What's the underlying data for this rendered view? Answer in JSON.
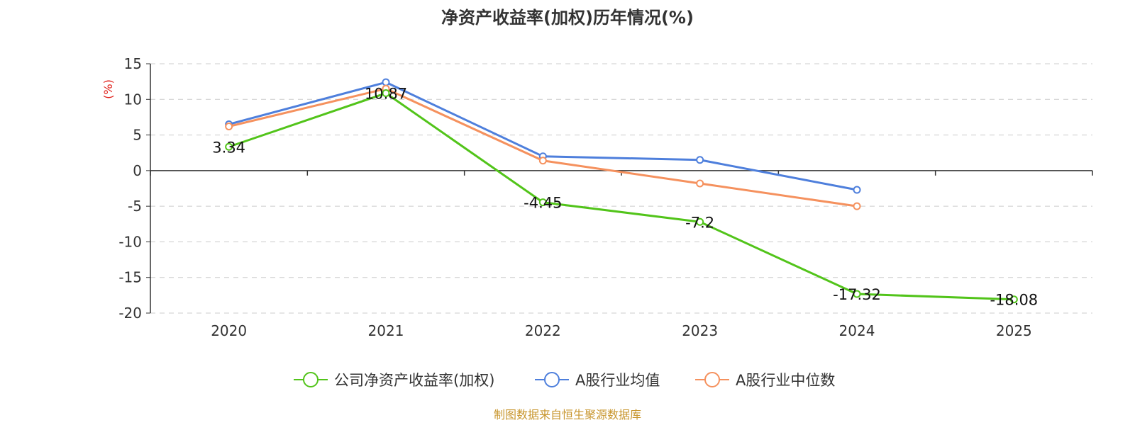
{
  "chart_data": {
    "type": "line",
    "title": "净资产收益率(加权)历年情况(%)",
    "ylabel": "(%)",
    "xlabel": "",
    "categories": [
      "2020",
      "2021",
      "2022",
      "2023",
      "2024",
      "2025"
    ],
    "ylim": [
      -20,
      15
    ],
    "yticks": [
      15,
      10,
      5,
      0,
      -5,
      -10,
      -15,
      -20
    ],
    "grid": true,
    "legend_position": "bottom-center",
    "series": [
      {
        "name": "公司净资产收益率(加权)",
        "color": "#52c41a",
        "values": [
          3.34,
          10.87,
          -4.45,
          -7.2,
          -17.32,
          -18.08
        ],
        "labels": [
          "3.34",
          "10.87",
          "-4.45",
          "-7.2",
          "-17.32",
          "-18.08"
        ],
        "show_labels": true
      },
      {
        "name": "A股行业均值",
        "color": "#4e7fdc",
        "values": [
          6.5,
          12.4,
          2.0,
          1.5,
          -2.7,
          null
        ],
        "show_labels": false
      },
      {
        "name": "A股行业中位数",
        "color": "#f5915e",
        "values": [
          6.2,
          11.5,
          1.4,
          -1.8,
          -5.0,
          null
        ],
        "show_labels": false
      }
    ],
    "unit_color": "#e0201a",
    "source": "制图数据来自恒生聚源数据库",
    "source_color": "#c8962e"
  }
}
